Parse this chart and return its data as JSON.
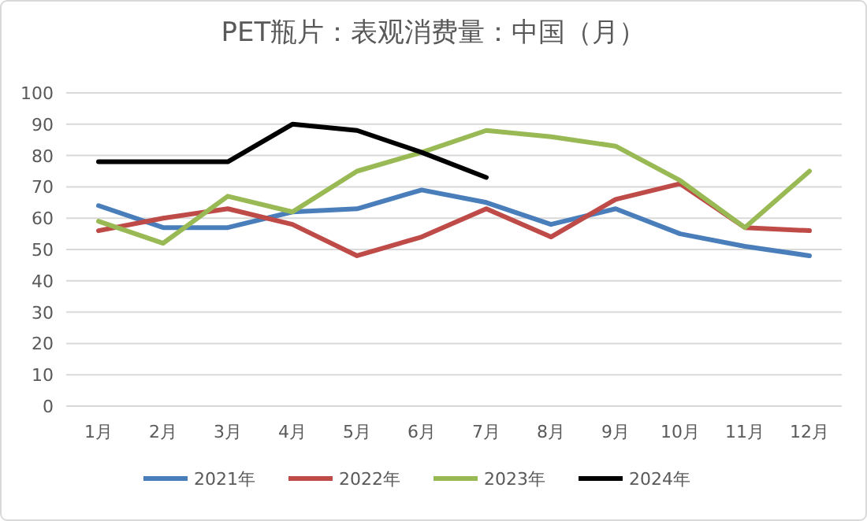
{
  "chart_data": {
    "type": "line",
    "title": "PET瓶片：表观消费量：中国（月）",
    "categories": [
      "1月",
      "2月",
      "3月",
      "4月",
      "5月",
      "6月",
      "7月",
      "8月",
      "9月",
      "10月",
      "11月",
      "12月"
    ],
    "series": [
      {
        "name": "2021年",
        "color": "#4a7ebb",
        "values": [
          64,
          57,
          57,
          62,
          63,
          69,
          65,
          58,
          63,
          55,
          51,
          48
        ]
      },
      {
        "name": "2022年",
        "color": "#be4b48",
        "values": [
          56,
          60,
          63,
          58,
          48,
          54,
          63,
          54,
          66,
          71,
          57,
          56
        ]
      },
      {
        "name": "2023年",
        "color": "#98b954",
        "values": [
          59,
          52,
          67,
          62,
          75,
          81,
          88,
          86,
          83,
          72,
          57,
          75
        ]
      },
      {
        "name": "2024年",
        "color": "#000000",
        "values": [
          78,
          78,
          78,
          90,
          88,
          81,
          73,
          null,
          null,
          null,
          null,
          null
        ]
      }
    ],
    "ylim": [
      0,
      100
    ],
    "yticks": [
      0,
      10,
      20,
      30,
      40,
      50,
      60,
      70,
      80,
      90,
      100
    ],
    "grid": "y",
    "legend": "bottom",
    "marker": "none",
    "line_style": "solid"
  }
}
